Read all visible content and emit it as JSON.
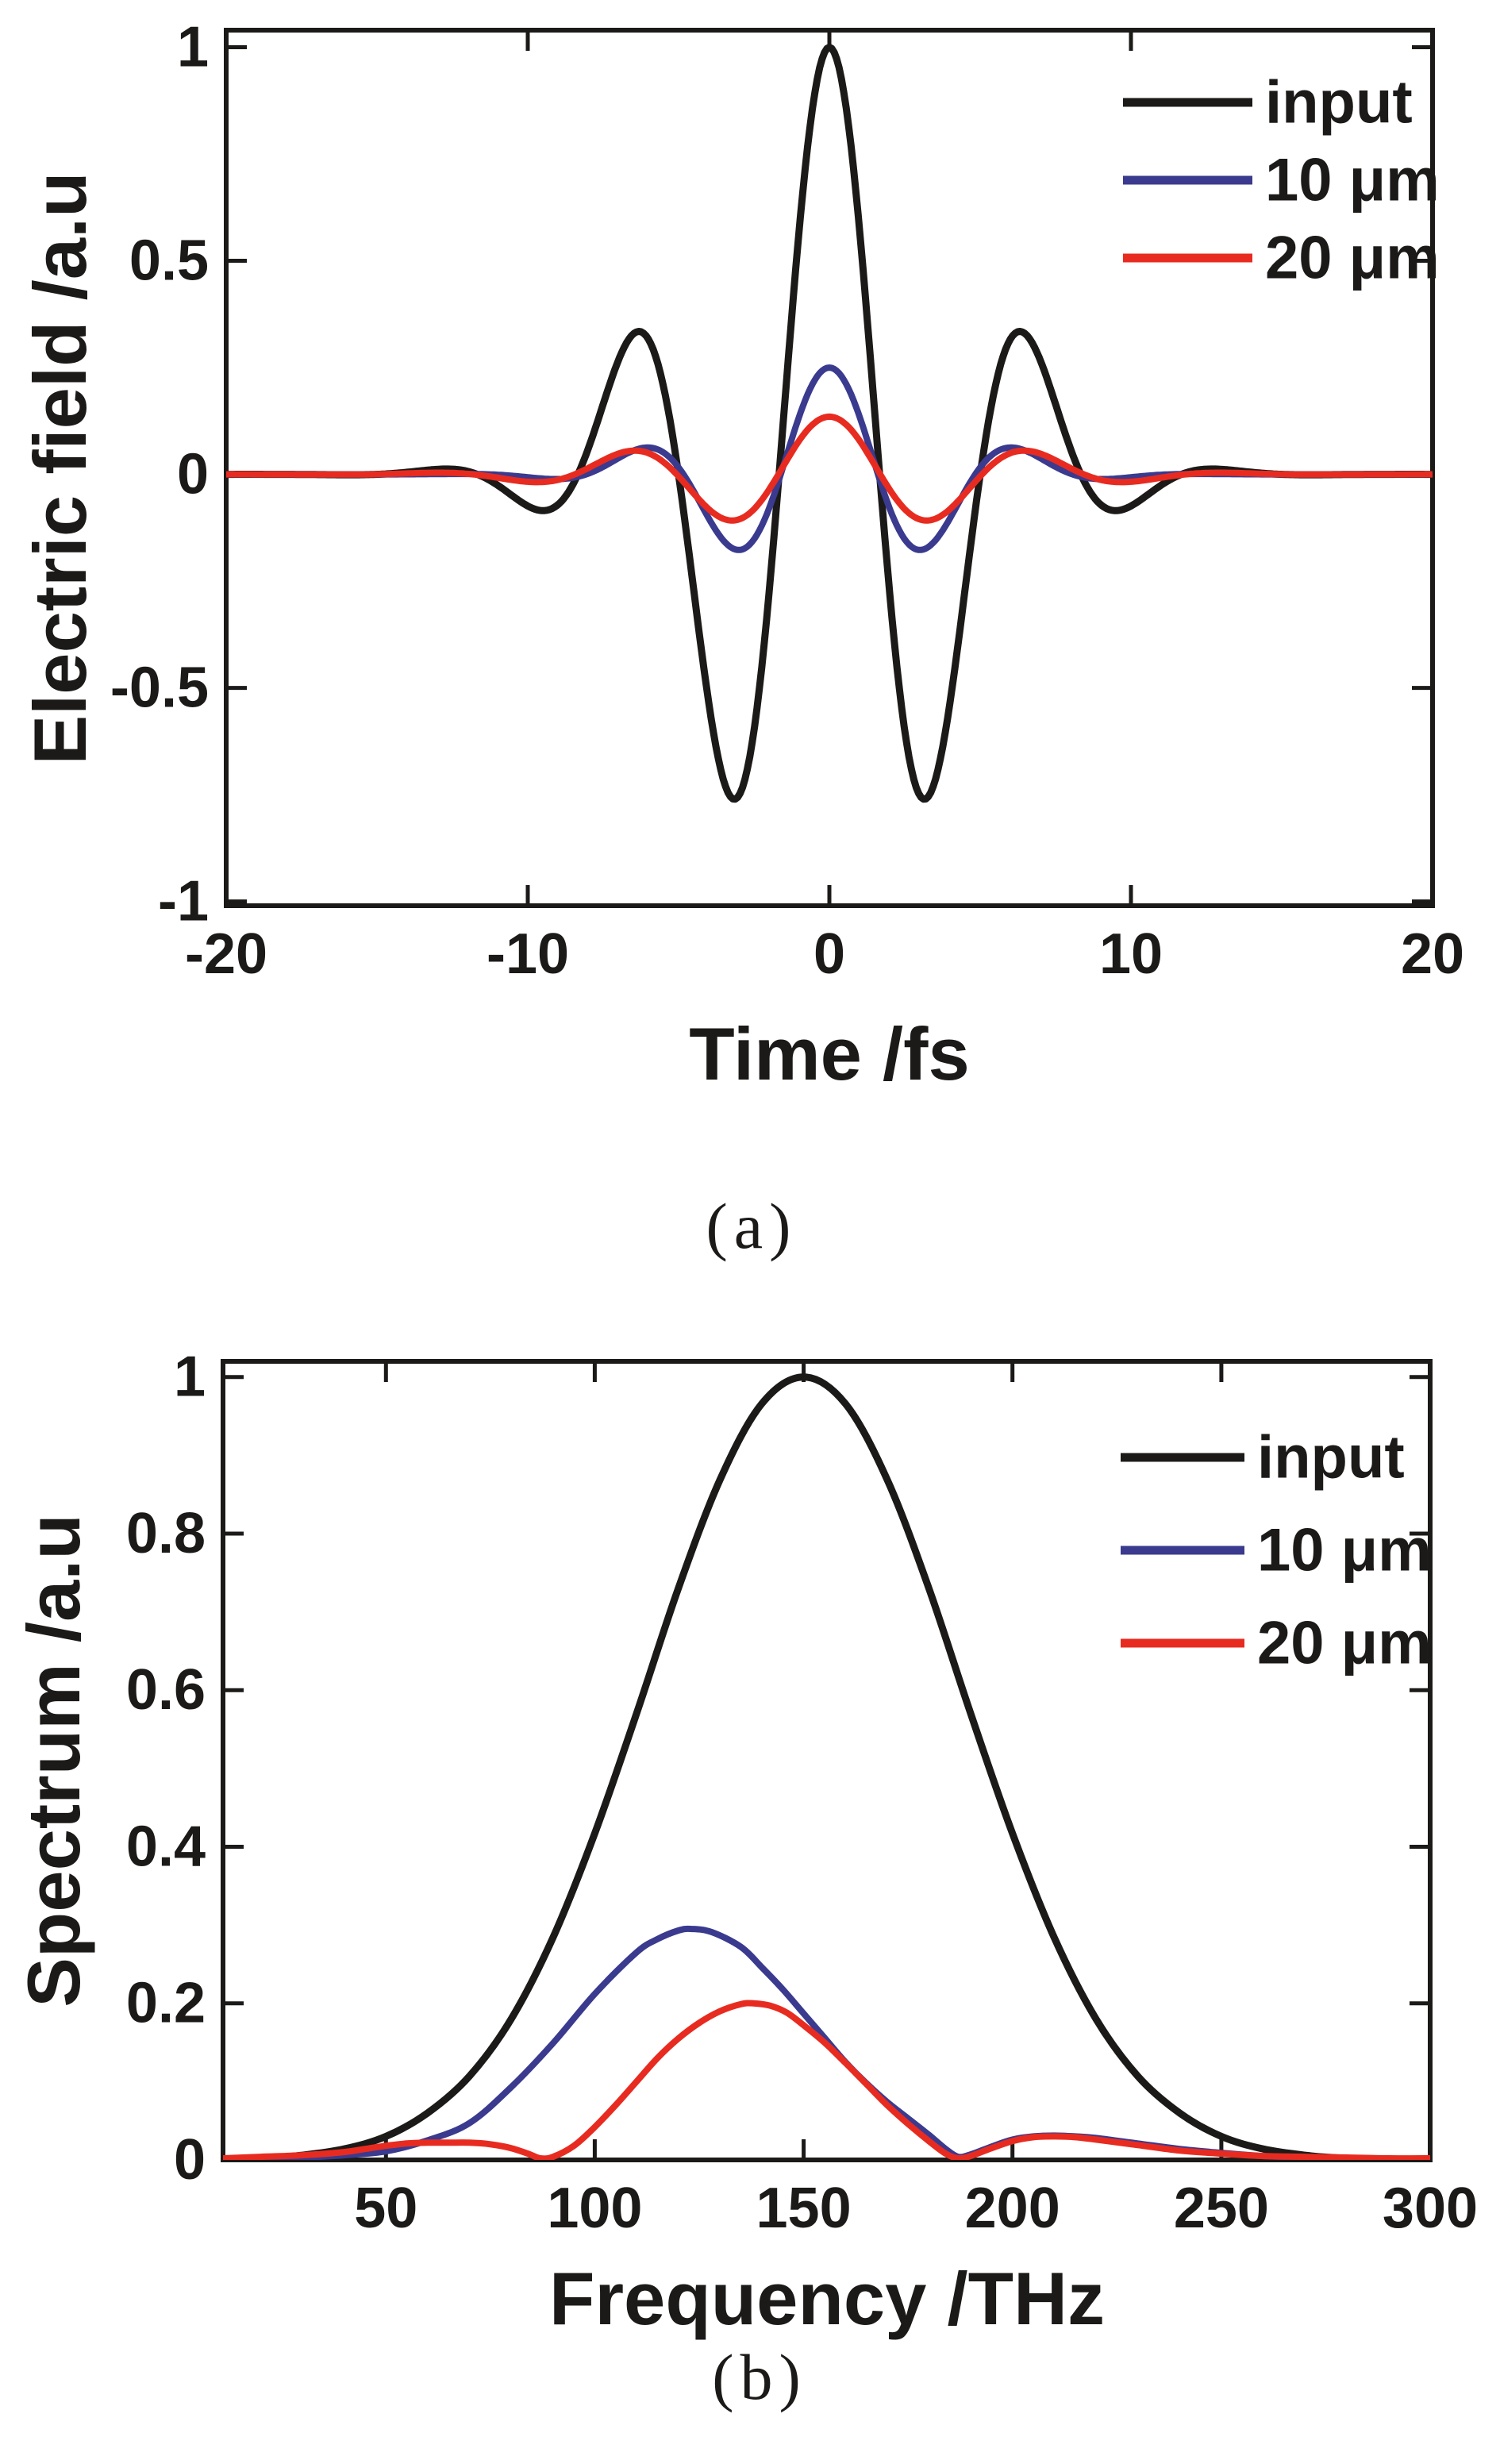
{
  "figure": {
    "background": "#ffffff",
    "text_color": "#1c1a18",
    "description": "Two stacked MATLAB-style plots: (a) time-domain electric field pulses, (b) corresponding spectra"
  },
  "chart_data": [
    {
      "panel": "a",
      "type": "line",
      "xlabel": "Time /fs",
      "ylabel": "Electric field /a.u",
      "panel_tag": "(a)",
      "xlim": [
        -20,
        20
      ],
      "ylim": [
        -1.01,
        1.04
      ],
      "xticks": [
        -20,
        -10,
        0,
        10,
        20
      ],
      "yticks": [
        -1,
        -0.5,
        0,
        0.5,
        1
      ],
      "grid": false,
      "legend_position": "top-right-inside",
      "series": [
        {
          "name": "input",
          "color": "#1c1a18",
          "model": {
            "kind": "gaussian_cosine",
            "amplitude": 1.0,
            "period_fs": 6.67,
            "envelope_sigma_fs": 6.2
          },
          "key_points": {
            "peak": [
              0,
              1.0
            ],
            "troughs": [
              [
                -3.3,
                -0.75
              ],
              [
                3.3,
                -0.75
              ]
            ],
            "side_peaks": [
              [
                -6.6,
                0.31
              ],
              [
                6.6,
                0.31
              ]
            ]
          }
        },
        {
          "name": "10 μm",
          "color": "#3a3a8f",
          "model": {
            "kind": "gaussian_cosine",
            "amplitude": 0.25,
            "period_fs": 6.45,
            "envelope_sigma_fs": 5.3
          },
          "key_points": {
            "peak": [
              0,
              0.25
            ],
            "troughs": [
              [
                -3.2,
                -0.17
              ],
              [
                3.2,
                -0.17
              ]
            ],
            "side_peaks": [
              [
                -6.4,
                0.06
              ],
              [
                6.4,
                0.06
              ]
            ]
          }
        },
        {
          "name": "20 μm",
          "color": "#e82b20",
          "model": {
            "kind": "gaussian_cosine",
            "amplitude": 0.135,
            "period_fs": 6.75,
            "envelope_sigma_fs": 7.0
          },
          "key_points": {
            "peak": [
              0,
              0.14
            ],
            "troughs": [
              [
                -3.4,
                -0.11
              ],
              [
                3.4,
                -0.11
              ]
            ],
            "side_peaks": [
              [
                -6.8,
                0.055
              ],
              [
                6.8,
                0.055
              ]
            ]
          }
        }
      ]
    },
    {
      "panel": "b",
      "type": "line",
      "xlabel": "Frequency /THz",
      "ylabel": "Spectrum /a.u",
      "panel_tag": "(b)",
      "xlim": [
        11,
        300
      ],
      "ylim": [
        0,
        1.02
      ],
      "xticks": [
        50,
        100,
        150,
        200,
        250,
        300
      ],
      "yticks": [
        0,
        0.2,
        0.4,
        0.6,
        0.8,
        1
      ],
      "grid": false,
      "legend_position": "top-right-inside",
      "series": [
        {
          "name": "input",
          "color": "#1c1a18",
          "key_points": {
            "peak": [
              150,
              1.0
            ]
          },
          "points": [
            [
              11,
              0
            ],
            [
              20,
              0.002
            ],
            [
              30,
              0.006
            ],
            [
              40,
              0.014
            ],
            [
              50,
              0.03
            ],
            [
              60,
              0.06
            ],
            [
              70,
              0.107
            ],
            [
              80,
              0.18
            ],
            [
              90,
              0.284
            ],
            [
              100,
              0.417
            ],
            [
              110,
              0.57
            ],
            [
              120,
              0.73
            ],
            [
              130,
              0.869
            ],
            [
              140,
              0.966
            ],
            [
              150,
              1.0
            ],
            [
              160,
              0.966
            ],
            [
              170,
              0.869
            ],
            [
              180,
              0.73
            ],
            [
              190,
              0.57
            ],
            [
              200,
              0.417
            ],
            [
              210,
              0.284
            ],
            [
              220,
              0.18
            ],
            [
              230,
              0.107
            ],
            [
              240,
              0.06
            ],
            [
              250,
              0.03
            ],
            [
              260,
              0.014
            ],
            [
              270,
              0.006
            ],
            [
              280,
              0.002
            ],
            [
              290,
              0.001
            ],
            [
              300,
              0.001
            ]
          ]
        },
        {
          "name": "10 μm",
          "color": "#3a3a8f",
          "key_points": {
            "peak": [
              123,
              0.295
            ],
            "null": [
              187,
              0.004
            ],
            "side_bump": [
              210,
              0.031
            ]
          },
          "points": [
            [
              11,
              0
            ],
            [
              20,
              0.001
            ],
            [
              30,
              0.003
            ],
            [
              40,
              0.006
            ],
            [
              50,
              0.011
            ],
            [
              60,
              0.025
            ],
            [
              70,
              0.047
            ],
            [
              80,
              0.093
            ],
            [
              90,
              0.149
            ],
            [
              100,
              0.212
            ],
            [
              110,
              0.265
            ],
            [
              115,
              0.282
            ],
            [
              120,
              0.293
            ],
            [
              123,
              0.295
            ],
            [
              128,
              0.291
            ],
            [
              135,
              0.272
            ],
            [
              140,
              0.246
            ],
            [
              145,
              0.218
            ],
            [
              150,
              0.187
            ],
            [
              155,
              0.156
            ],
            [
              160,
              0.125
            ],
            [
              165,
              0.098
            ],
            [
              170,
              0.074
            ],
            [
              175,
              0.053
            ],
            [
              180,
              0.032
            ],
            [
              184,
              0.014
            ],
            [
              187,
              0.004
            ],
            [
              190,
              0.007
            ],
            [
              195,
              0.017
            ],
            [
              200,
              0.026
            ],
            [
              205,
              0.03
            ],
            [
              210,
              0.031
            ],
            [
              215,
              0.03
            ],
            [
              220,
              0.028
            ],
            [
              230,
              0.021
            ],
            [
              240,
              0.014
            ],
            [
              250,
              0.009
            ],
            [
              260,
              0.005
            ],
            [
              270,
              0.003
            ],
            [
              280,
              0.002
            ],
            [
              290,
              0.001
            ],
            [
              300,
              0.001
            ]
          ]
        },
        {
          "name": "20 μm",
          "color": "#e82b20",
          "key_points": {
            "peak": [
              137,
              0.2
            ],
            "nulls": [
              [
                87,
                0.002
              ],
              [
                187,
                0.002
              ]
            ],
            "low_bump": [
              65,
              0.022
            ],
            "side_bump": [
              210,
              0.03
            ]
          },
          "points": [
            [
              11,
              0.002
            ],
            [
              20,
              0.004
            ],
            [
              30,
              0.006
            ],
            [
              40,
              0.01
            ],
            [
              45,
              0.014
            ],
            [
              50,
              0.018
            ],
            [
              55,
              0.021
            ],
            [
              60,
              0.022
            ],
            [
              65,
              0.022
            ],
            [
              70,
              0.022
            ],
            [
              75,
              0.02
            ],
            [
              80,
              0.015
            ],
            [
              84,
              0.008
            ],
            [
              87,
              0.002
            ],
            [
              90,
              0.004
            ],
            [
              95,
              0.018
            ],
            [
              100,
              0.042
            ],
            [
              105,
              0.07
            ],
            [
              110,
              0.1
            ],
            [
              115,
              0.13
            ],
            [
              120,
              0.155
            ],
            [
              125,
              0.175
            ],
            [
              130,
              0.19
            ],
            [
              135,
              0.199
            ],
            [
              138,
              0.2
            ],
            [
              142,
              0.197
            ],
            [
              146,
              0.188
            ],
            [
              150,
              0.172
            ],
            [
              155,
              0.15
            ],
            [
              160,
              0.124
            ],
            [
              165,
              0.097
            ],
            [
              170,
              0.07
            ],
            [
              175,
              0.046
            ],
            [
              180,
              0.024
            ],
            [
              184,
              0.008
            ],
            [
              187,
              0.002
            ],
            [
              190,
              0.005
            ],
            [
              195,
              0.015
            ],
            [
              200,
              0.024
            ],
            [
              205,
              0.029
            ],
            [
              210,
              0.03
            ],
            [
              215,
              0.029
            ],
            [
              220,
              0.026
            ],
            [
              230,
              0.019
            ],
            [
              240,
              0.012
            ],
            [
              250,
              0.008
            ],
            [
              260,
              0.005
            ],
            [
              270,
              0.004
            ],
            [
              280,
              0.003
            ],
            [
              290,
              0.002
            ],
            [
              300,
              0.002
            ]
          ]
        }
      ]
    }
  ]
}
